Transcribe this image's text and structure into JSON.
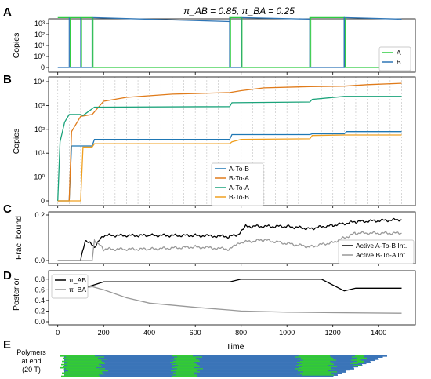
{
  "figure": {
    "title": "π_AB = 0.85, π_BA = 0.25",
    "time_label": "Time",
    "colors": {
      "A": "#2ecc40",
      "B": "#2e75b6",
      "AtoB": "#1f77b4",
      "BtoA": "#e07b1a",
      "AtoA": "#1aa37a",
      "BtoB": "#f0a020",
      "active_AB": "#000000",
      "active_BA": "#999999"
    }
  },
  "chart_data": [
    {
      "panel": "A",
      "type": "line",
      "ylabel": "Copies",
      "yscale": "symlog",
      "yticks": [
        "0",
        "10⁰",
        "10¹",
        "10²",
        "10³"
      ],
      "xlim": [
        -40,
        1560
      ],
      "series": [
        {
          "name": "A",
          "color": "#2ecc40",
          "points": [
            [
              0,
              3500
            ],
            [
              150,
              3500
            ],
            [
              150,
              0
            ],
            [
              750,
              0
            ],
            [
              750,
              3500
            ],
            [
              800,
              3500
            ],
            [
              800,
              0
            ],
            [
              1100,
              0
            ],
            [
              1100,
              3500
            ],
            [
              1250,
              3500
            ],
            [
              1250,
              0
            ],
            [
              1500,
              0
            ]
          ]
        },
        {
          "name": "B",
          "color": "#2e75b6",
          "points": [
            [
              0,
              0
            ],
            [
              150,
              0
            ],
            [
              150,
              3500
            ],
            [
              750,
              1500
            ],
            [
              750,
              0
            ],
            [
              800,
              0
            ],
            [
              800,
              3500
            ],
            [
              1100,
              2500
            ],
            [
              1100,
              0
            ],
            [
              1250,
              0
            ],
            [
              1250,
              3500
            ],
            [
              1500,
              2500
            ]
          ]
        }
      ],
      "spikes": [
        50,
        100,
        150,
        750,
        800,
        1100,
        1250
      ]
    },
    {
      "panel": "B",
      "type": "line",
      "ylabel": "Copies",
      "yscale": "symlog",
      "yticks": [
        "0",
        "10⁰",
        "10¹",
        "10²",
        "10³",
        "10⁴"
      ],
      "xlim": [
        -40,
        1560
      ],
      "vlines_every": 50,
      "series": [
        {
          "name": "A-To-B",
          "color": "#1f77b4",
          "points": [
            [
              0,
              0
            ],
            [
              50,
              0
            ],
            [
              60,
              20
            ],
            [
              150,
              20
            ],
            [
              160,
              38
            ],
            [
              750,
              38
            ],
            [
              760,
              60
            ],
            [
              1100,
              60
            ],
            [
              1110,
              65
            ],
            [
              1250,
              65
            ],
            [
              1260,
              80
            ],
            [
              1500,
              80
            ]
          ]
        },
        {
          "name": "B-To-A",
          "color": "#e07b1a",
          "points": [
            [
              0,
              0
            ],
            [
              50,
              0
            ],
            [
              60,
              80
            ],
            [
              100,
              350
            ],
            [
              150,
              420
            ],
            [
              200,
              1500
            ],
            [
              300,
              2200
            ],
            [
              500,
              3000
            ],
            [
              750,
              3500
            ],
            [
              800,
              4200
            ],
            [
              900,
              5500
            ],
            [
              1100,
              6200
            ],
            [
              1250,
              6500
            ],
            [
              1350,
              7500
            ],
            [
              1500,
              8500
            ]
          ]
        },
        {
          "name": "A-To-A",
          "color": "#1aa37a",
          "points": [
            [
              0,
              0
            ],
            [
              10,
              30
            ],
            [
              30,
              200
            ],
            [
              50,
              420
            ],
            [
              100,
              420
            ],
            [
              110,
              380
            ],
            [
              160,
              850
            ],
            [
              750,
              900
            ],
            [
              760,
              1300
            ],
            [
              1100,
              1400
            ],
            [
              1110,
              1800
            ],
            [
              1250,
              2400
            ],
            [
              1500,
              2400
            ]
          ]
        },
        {
          "name": "B-To-B",
          "color": "#f0a020",
          "points": [
            [
              0,
              0
            ],
            [
              100,
              0
            ],
            [
              110,
              18
            ],
            [
              150,
              18
            ],
            [
              160,
              25
            ],
            [
              750,
              25
            ],
            [
              760,
              30
            ],
            [
              800,
              38
            ],
            [
              1100,
              40
            ],
            [
              1110,
              55
            ],
            [
              1250,
              58
            ],
            [
              1500,
              58
            ]
          ]
        }
      ]
    },
    {
      "panel": "C",
      "type": "line",
      "ylabel": "Frac. bound",
      "ylim": [
        0,
        0.2
      ],
      "yticks": [
        "0.0",
        "0.2"
      ],
      "xlim": [
        -40,
        1560
      ],
      "series": [
        {
          "name": "Active A-To-B Int.",
          "color": "#000000",
          "points": [
            [
              0,
              0
            ],
            [
              100,
              0
            ],
            [
              120,
              0.09
            ],
            [
              160,
              0.06
            ],
            [
              200,
              0.11
            ],
            [
              400,
              0.11
            ],
            [
              600,
              0.11
            ],
            [
              750,
              0.105
            ],
            [
              790,
              0.115
            ],
            [
              820,
              0.15
            ],
            [
              1000,
              0.15
            ],
            [
              1100,
              0.14
            ],
            [
              1200,
              0.155
            ],
            [
              1300,
              0.17
            ],
            [
              1500,
              0.18
            ]
          ]
        },
        {
          "name": "Active B-To-A Int.",
          "color": "#999999",
          "points": [
            [
              0,
              0
            ],
            [
              150,
              0
            ],
            [
              160,
              0.09
            ],
            [
              180,
              0.07
            ],
            [
              200,
              0.05
            ],
            [
              400,
              0.05
            ],
            [
              600,
              0.06
            ],
            [
              750,
              0.05
            ],
            [
              800,
              0.08
            ],
            [
              900,
              0.09
            ],
            [
              1100,
              0.06
            ],
            [
              1200,
              0.08
            ],
            [
              1300,
              0.12
            ],
            [
              1500,
              0.12
            ]
          ]
        }
      ]
    },
    {
      "panel": "D",
      "type": "line",
      "ylabel": "Posterior",
      "ylim": [
        0,
        0.9
      ],
      "yticks": [
        "0.0",
        "0.2",
        "0.4",
        "0.6",
        "0.8"
      ],
      "xlim": [
        -40,
        1560
      ],
      "xticks": [
        0,
        200,
        400,
        600,
        800,
        1000,
        1200,
        1400
      ],
      "series": [
        {
          "name": "π_AB",
          "color": "#000000",
          "points": [
            [
              0,
              0.62
            ],
            [
              100,
              0.62
            ],
            [
              150,
              0.68
            ],
            [
              200,
              0.75
            ],
            [
              750,
              0.75
            ],
            [
              800,
              0.8
            ],
            [
              1150,
              0.8
            ],
            [
              1250,
              0.58
            ],
            [
              1300,
              0.63
            ],
            [
              1500,
              0.63
            ]
          ]
        },
        {
          "name": "π_BA",
          "color": "#999999",
          "points": [
            [
              0,
              0.62
            ],
            [
              100,
              0.62
            ],
            [
              150,
              0.66
            ],
            [
              200,
              0.6
            ],
            [
              300,
              0.45
            ],
            [
              400,
              0.35
            ],
            [
              600,
              0.27
            ],
            [
              750,
              0.22
            ],
            [
              800,
              0.2
            ],
            [
              1000,
              0.18
            ],
            [
              1200,
              0.17
            ],
            [
              1500,
              0.16
            ]
          ]
        }
      ]
    }
  ],
  "panelE": {
    "label_lines": [
      "Polymers",
      "at end",
      "(20 T)"
    ],
    "colors": {
      "A": "#33cc33",
      "B": "#3a74b8"
    }
  }
}
